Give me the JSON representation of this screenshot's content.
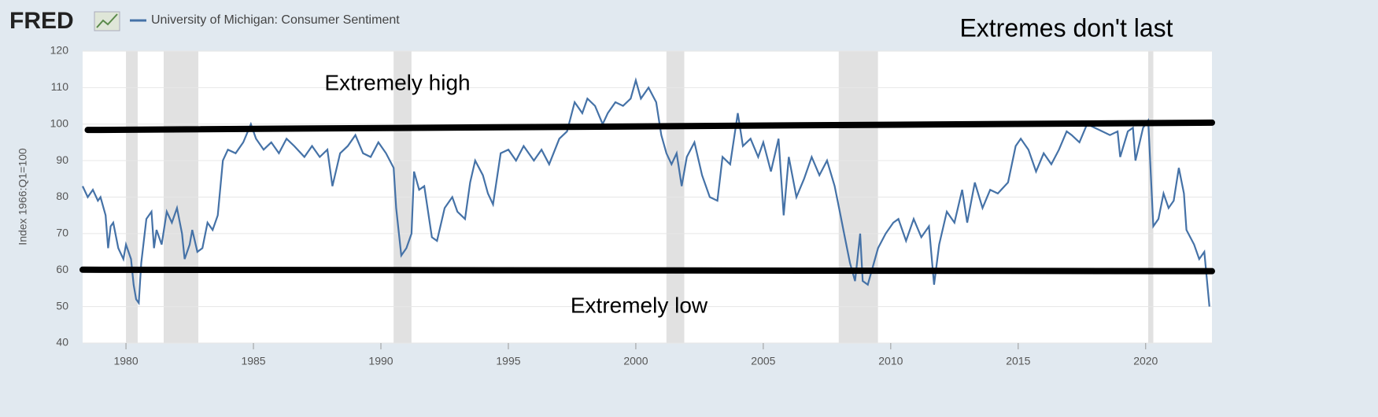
{
  "logo": "FRED",
  "chart_data": {
    "type": "line",
    "title": "Extremes don't last",
    "ylabel": "Index 1966:Q1=100",
    "annotations": [
      "Extremely high",
      "Extremely low"
    ],
    "x": [
      1978.3,
      1978.5,
      1978.7,
      1978.9,
      1979.0,
      1979.2,
      1979.3,
      1979.4,
      1979.5,
      1979.7,
      1979.9,
      1980.0,
      1980.2,
      1980.3,
      1980.4,
      1980.5,
      1980.6,
      1980.8,
      1981.0,
      1981.1,
      1981.2,
      1981.4,
      1981.6,
      1981.8,
      1982.0,
      1982.2,
      1982.3,
      1982.5,
      1982.6,
      1982.8,
      1983.0,
      1983.2,
      1983.4,
      1983.6,
      1983.8,
      1984.0,
      1984.3,
      1984.6,
      1984.9,
      1985.1,
      1985.4,
      1985.7,
      1986.0,
      1986.3,
      1986.6,
      1987.0,
      1987.3,
      1987.6,
      1987.9,
      1988.1,
      1988.4,
      1988.7,
      1989.0,
      1989.3,
      1989.6,
      1989.9,
      1990.2,
      1990.5,
      1990.6,
      1990.8,
      1991.0,
      1991.2,
      1991.3,
      1991.5,
      1991.7,
      1992.0,
      1992.2,
      1992.5,
      1992.8,
      1993.0,
      1993.3,
      1993.5,
      1993.7,
      1994.0,
      1994.2,
      1994.4,
      1994.7,
      1995.0,
      1995.3,
      1995.6,
      1996.0,
      1996.3,
      1996.6,
      1997.0,
      1997.3,
      1997.6,
      1997.9,
      1998.1,
      1998.4,
      1998.7,
      1998.9,
      1999.2,
      1999.5,
      1999.8,
      2000.0,
      2000.2,
      2000.5,
      2000.8,
      2001.0,
      2001.2,
      2001.4,
      2001.6,
      2001.8,
      2002.0,
      2002.3,
      2002.6,
      2002.9,
      2003.2,
      2003.4,
      2003.7,
      2004.0,
      2004.2,
      2004.5,
      2004.8,
      2005.0,
      2005.3,
      2005.6,
      2005.8,
      2006.0,
      2006.3,
      2006.6,
      2006.9,
      2007.2,
      2007.5,
      2007.8,
      2008.0,
      2008.2,
      2008.4,
      2008.6,
      2008.8,
      2008.9,
      2009.1,
      2009.3,
      2009.5,
      2009.8,
      2010.1,
      2010.3,
      2010.6,
      2010.9,
      2011.2,
      2011.5,
      2011.7,
      2011.9,
      2012.2,
      2012.5,
      2012.8,
      2013.0,
      2013.3,
      2013.6,
      2013.9,
      2014.2,
      2014.6,
      2014.9,
      2015.1,
      2015.4,
      2015.7,
      2016.0,
      2016.3,
      2016.6,
      2016.9,
      2017.1,
      2017.4,
      2017.7,
      2018.0,
      2018.3,
      2018.6,
      2018.9,
      2019.0,
      2019.3,
      2019.5,
      2019.6,
      2019.9,
      2020.1,
      2020.3,
      2020.5,
      2020.7,
      2020.9,
      2021.1,
      2021.3,
      2021.5,
      2021.6,
      2021.9,
      2022.1,
      2022.3,
      2022.5
    ],
    "series": [
      {
        "name": "University of Michigan: Consumer Sentiment",
        "color": "#4572a7",
        "values": [
          83,
          80,
          82,
          79,
          80,
          75,
          66,
          72,
          73,
          66,
          63,
          67,
          63,
          56,
          52,
          51,
          62,
          74,
          76,
          66,
          71,
          67,
          76,
          73,
          77,
          70,
          63,
          67,
          71,
          65,
          66,
          73,
          71,
          75,
          90,
          93,
          92,
          95,
          100,
          96,
          93,
          95,
          92,
          96,
          94,
          91,
          94,
          91,
          93,
          83,
          92,
          94,
          97,
          92,
          91,
          95,
          92,
          88,
          77,
          64,
          66,
          70,
          87,
          82,
          83,
          69,
          68,
          77,
          80,
          76,
          74,
          84,
          90,
          86,
          81,
          78,
          92,
          93,
          90,
          94,
          90,
          93,
          89,
          96,
          98,
          106,
          103,
          107,
          105,
          100,
          103,
          106,
          105,
          107,
          112,
          107,
          110,
          106,
          97,
          92,
          89,
          92,
          83,
          91,
          95,
          86,
          80,
          79,
          91,
          89,
          103,
          94,
          96,
          91,
          95,
          87,
          96,
          75,
          91,
          80,
          85,
          91,
          86,
          90,
          83,
          76,
          69,
          62,
          57,
          70,
          57,
          56,
          61,
          66,
          70,
          73,
          74,
          68,
          74,
          69,
          72,
          56,
          67,
          76,
          73,
          82,
          73,
          84,
          77,
          82,
          81,
          84,
          94,
          96,
          93,
          87,
          92,
          89,
          93,
          98,
          97,
          95,
          100,
          99,
          98,
          97,
          98,
          91,
          98,
          99,
          90,
          99,
          101,
          72,
          74,
          81,
          77,
          79,
          88,
          81,
          71,
          67,
          63,
          65,
          50
        ]
      }
    ],
    "recessions": [
      [
        1980.0,
        1980.46
      ],
      [
        1981.48,
        1982.84
      ],
      [
        1990.5,
        1991.2
      ],
      [
        2001.2,
        2001.9
      ],
      [
        2007.96,
        2009.5
      ],
      [
        2020.1,
        2020.3
      ]
    ],
    "reference_lines": [
      {
        "x": [
          1978.5,
          2022.6
        ],
        "y": [
          98.4,
          100.4
        ]
      },
      {
        "x": [
          1978.3,
          2022.6
        ],
        "y": [
          60.1,
          59.7
        ]
      }
    ],
    "xlim": [
      1978.3,
      2022.6
    ],
    "ylim": [
      40,
      120
    ],
    "xticks": [
      1980,
      1985,
      1990,
      1995,
      2000,
      2005,
      2010,
      2015,
      2020
    ],
    "yticks": [
      40,
      50,
      60,
      70,
      80,
      90,
      100,
      110,
      120
    ],
    "grid": true
  }
}
